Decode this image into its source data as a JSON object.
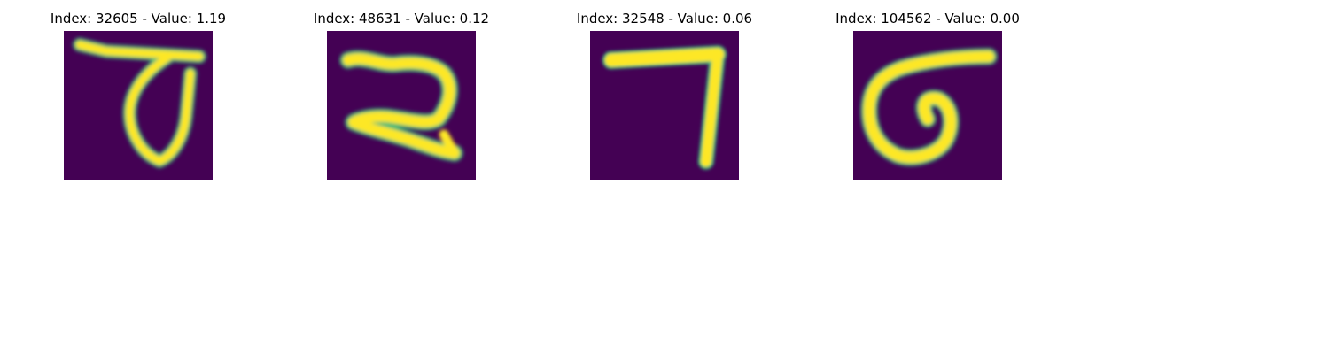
{
  "colormap": {
    "background": "#440154",
    "low": "#31688e",
    "mid": "#35b779",
    "high": "#fde725"
  },
  "panels": [
    {
      "title": "Index: 32605 - Value: 1.19",
      "digit_glyph": "handwritten-digit-7"
    },
    {
      "title": "Index: 48631 - Value: 0.12",
      "digit_glyph": "handwritten-digit-2"
    },
    {
      "title": "Index: 32548 - Value: 0.06",
      "digit_glyph": "handwritten-digit-7"
    },
    {
      "title": "Index: 104562 - Value: 0.00",
      "digit_glyph": "handwritten-digit-6"
    }
  ]
}
